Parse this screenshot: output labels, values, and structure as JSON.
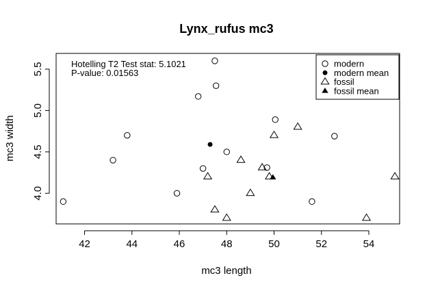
{
  "chart_data": {
    "type": "scatter",
    "title": "Lynx_rufus mc3",
    "xlabel": "mc3 length",
    "ylabel": "mc3 width",
    "xlim": [
      40.8,
      55.3
    ],
    "ylim": [
      3.63,
      5.69
    ],
    "xticks": [
      "42",
      "44",
      "46",
      "48",
      "50",
      "52",
      "54"
    ],
    "yticks": [
      "4.0",
      "4.5",
      "5.0",
      "5.5"
    ],
    "annotations": {
      "line1": "Hotelling T2 Test stat:  5.1021",
      "line2": "P-value:  0.01563"
    },
    "legend": {
      "position": "top-right",
      "entries": [
        "modern",
        "modern mean",
        "fossil",
        "fossil mean"
      ]
    },
    "series": [
      {
        "name": "modern",
        "marker": "open-circle",
        "points": [
          [
            41.1,
            3.9
          ],
          [
            43.2,
            4.4
          ],
          [
            43.8,
            4.7
          ],
          [
            45.9,
            4.0
          ],
          [
            46.8,
            5.17
          ],
          [
            47.0,
            4.3
          ],
          [
            47.5,
            5.6
          ],
          [
            47.55,
            5.3
          ],
          [
            48.0,
            4.5
          ],
          [
            49.7,
            4.31
          ],
          [
            50.05,
            4.89
          ],
          [
            51.6,
            3.9
          ],
          [
            52.55,
            4.69
          ]
        ]
      },
      {
        "name": "modern mean",
        "marker": "filled-circle",
        "points": [
          [
            47.3,
            4.59
          ]
        ]
      },
      {
        "name": "fossil",
        "marker": "open-triangle",
        "points": [
          [
            47.2,
            4.2
          ],
          [
            47.5,
            3.8
          ],
          [
            48.0,
            3.7
          ],
          [
            48.6,
            4.4
          ],
          [
            49.0,
            4.0
          ],
          [
            49.5,
            4.31
          ],
          [
            49.8,
            4.2
          ],
          [
            50.0,
            4.7
          ],
          [
            51.0,
            4.8
          ],
          [
            53.9,
            3.7
          ],
          [
            55.1,
            4.2
          ]
        ]
      },
      {
        "name": "fossil mean",
        "marker": "filled-triangle",
        "points": [
          [
            49.95,
            4.19
          ]
        ]
      }
    ]
  }
}
